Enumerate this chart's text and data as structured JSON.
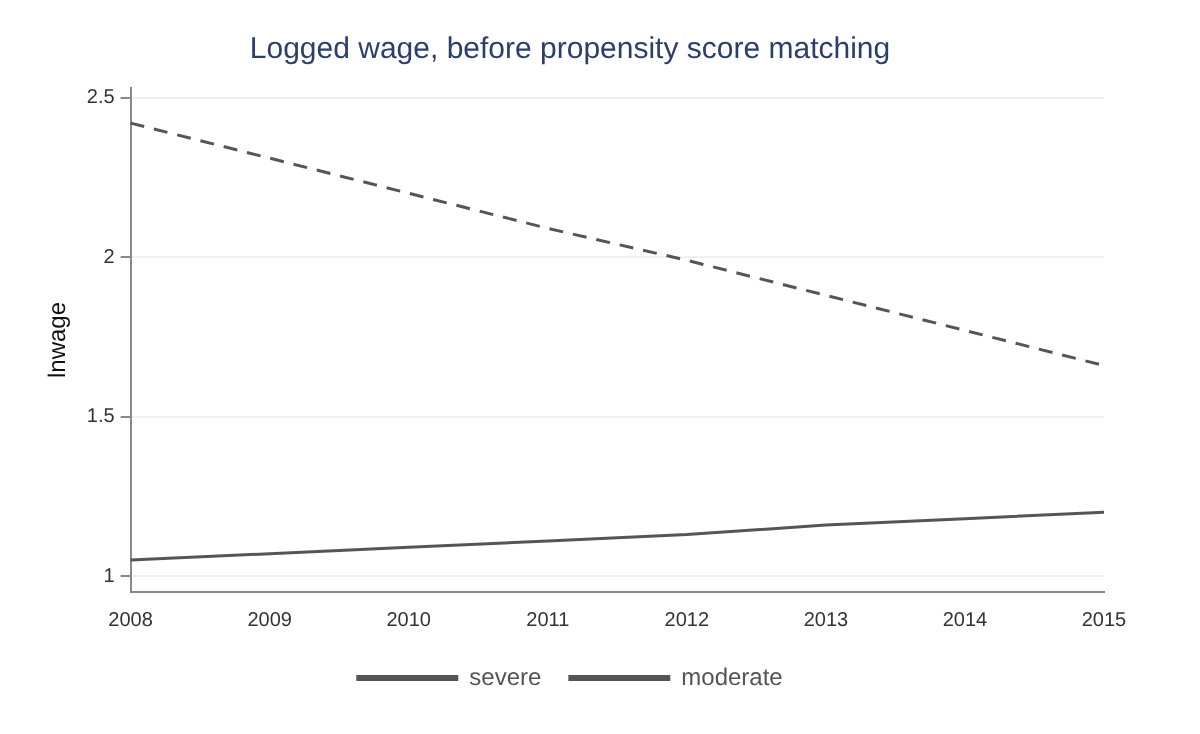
{
  "chart_data": {
    "type": "line",
    "title": "Logged wage, before propensity score matching",
    "ylabel": "lnwage",
    "categories": [
      "2008",
      "2009",
      "2010",
      "2011",
      "2012",
      "2013",
      "2014",
      "2015"
    ],
    "series": [
      {
        "name": "severe",
        "color": "#555555",
        "line_style": "solid",
        "values": [
          1.05,
          1.07,
          1.09,
          1.11,
          1.13,
          1.16,
          1.18,
          1.2
        ]
      },
      {
        "name": "moderate",
        "color": "#555555",
        "line_style": "dashed",
        "values": [
          2.42,
          2.31,
          2.2,
          2.09,
          1.99,
          1.88,
          1.77,
          1.66
        ]
      }
    ],
    "ylim": [
      0.95,
      2.53
    ],
    "yticks": [
      1,
      1.5,
      2,
      2.5
    ],
    "grid": "y",
    "legend": "bottom",
    "marker": "none"
  }
}
